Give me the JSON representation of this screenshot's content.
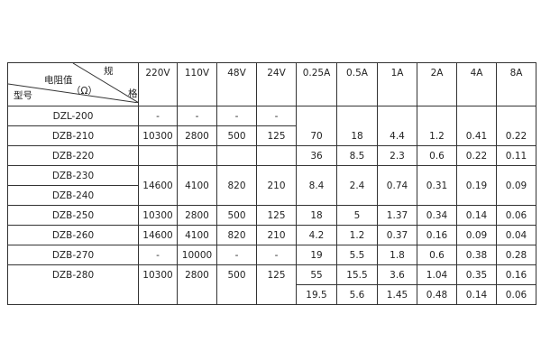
{
  "header": {
    "corner": {
      "top": "规",
      "right": "格",
      "middle": "电阻值",
      "unit": "（Ω）",
      "bottom": "型号"
    },
    "columns": [
      "220V",
      "110V",
      "48V",
      "24V",
      "0.25A",
      "0.5A",
      "1A",
      "2A",
      "4A",
      "8A"
    ]
  },
  "models": [
    "DZL-200",
    "DZB-210",
    "DZB-220",
    "DZB-230",
    "DZB-240",
    "DZB-250",
    "DZB-260",
    "DZB-270",
    "DZB-280"
  ],
  "voltage_groups": [
    [
      "-",
      "-",
      "-",
      "-"
    ],
    [
      "10300",
      "2800",
      "500",
      "125"
    ],
    [
      "",
      "",
      "",
      ""
    ],
    [
      "14600",
      "4100",
      "820",
      "210"
    ],
    [
      "10300",
      "2800",
      "500",
      "125"
    ],
    [
      "14600",
      "4100",
      "820",
      "210"
    ],
    [
      "-",
      "10000",
      "-",
      "-"
    ],
    [
      "10300",
      "2800",
      "500",
      "125"
    ]
  ],
  "current_groups": [
    [
      "70",
      "18",
      "4.4",
      "1.2",
      "0.41",
      "0.22"
    ],
    [
      "36",
      "8.5",
      "2.3",
      "0.6",
      "0.22",
      "0.11"
    ],
    [
      "8.4",
      "2.4",
      "0.74",
      "0.31",
      "0.19",
      "0.09"
    ],
    [
      "18",
      "5",
      "1.37",
      "0.34",
      "0.14",
      "0.06"
    ],
    [
      "4.2",
      "1.2",
      "0.37",
      "0.16",
      "0.09",
      "0.04"
    ],
    [
      "19",
      "5.5",
      "1.8",
      "0.6",
      "0.38",
      "0.28"
    ],
    [
      "55",
      "15.5",
      "3.6",
      "1.04",
      "0.35",
      "0.16"
    ],
    [
      "19.5",
      "5.6",
      "1.45",
      "0.48",
      "0.14",
      "0.06"
    ]
  ]
}
